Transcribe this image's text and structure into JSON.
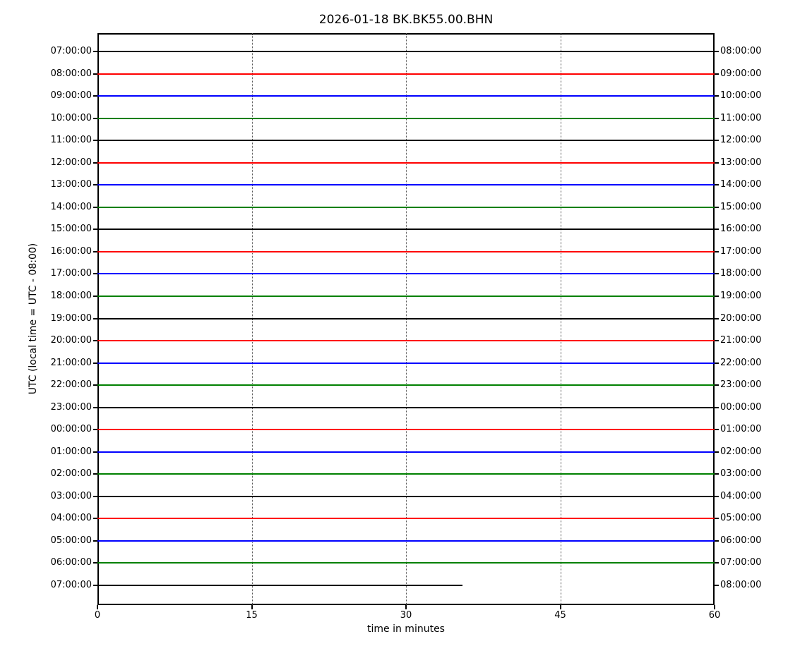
{
  "chart_data": {
    "type": "line",
    "subtype": "helicorder-dayplot",
    "title": "2026-01-18 BK.BK55.00.BHN",
    "xlabel": "time in minutes",
    "ylabel": "UTC (local time = UTC - 08:00)",
    "xlim": [
      0,
      60
    ],
    "x_ticks": [
      0,
      15,
      30,
      45,
      60
    ],
    "grid_minutes": [
      15,
      30,
      45
    ],
    "grid_style": "vertical dotted",
    "legend": "none",
    "line_color_cycle": [
      "#000000",
      "#ff0000",
      "#0000ff",
      "#008000"
    ],
    "trace_appearance": "flat low-amplitude horizontal traces, one per hour",
    "rows": [
      {
        "left_label": "07:00:00",
        "right_label": "08:00:00",
        "color": "#000000",
        "start_minute": 0,
        "end_minute": 60
      },
      {
        "left_label": "08:00:00",
        "right_label": "09:00:00",
        "color": "#ff0000",
        "start_minute": 0,
        "end_minute": 60
      },
      {
        "left_label": "09:00:00",
        "right_label": "10:00:00",
        "color": "#0000ff",
        "start_minute": 0,
        "end_minute": 60
      },
      {
        "left_label": "10:00:00",
        "right_label": "11:00:00",
        "color": "#008000",
        "start_minute": 0,
        "end_minute": 60
      },
      {
        "left_label": "11:00:00",
        "right_label": "12:00:00",
        "color": "#000000",
        "start_minute": 0,
        "end_minute": 60
      },
      {
        "left_label": "12:00:00",
        "right_label": "13:00:00",
        "color": "#ff0000",
        "start_minute": 0,
        "end_minute": 60
      },
      {
        "left_label": "13:00:00",
        "right_label": "14:00:00",
        "color": "#0000ff",
        "start_minute": 0,
        "end_minute": 60
      },
      {
        "left_label": "14:00:00",
        "right_label": "15:00:00",
        "color": "#008000",
        "start_minute": 0,
        "end_minute": 60
      },
      {
        "left_label": "15:00:00",
        "right_label": "16:00:00",
        "color": "#000000",
        "start_minute": 0,
        "end_minute": 60
      },
      {
        "left_label": "16:00:00",
        "right_label": "17:00:00",
        "color": "#ff0000",
        "start_minute": 0,
        "end_minute": 60
      },
      {
        "left_label": "17:00:00",
        "right_label": "18:00:00",
        "color": "#0000ff",
        "start_minute": 0,
        "end_minute": 60
      },
      {
        "left_label": "18:00:00",
        "right_label": "19:00:00",
        "color": "#008000",
        "start_minute": 0,
        "end_minute": 60
      },
      {
        "left_label": "19:00:00",
        "right_label": "20:00:00",
        "color": "#000000",
        "start_minute": 0,
        "end_minute": 60
      },
      {
        "left_label": "20:00:00",
        "right_label": "21:00:00",
        "color": "#ff0000",
        "start_minute": 0,
        "end_minute": 60
      },
      {
        "left_label": "21:00:00",
        "right_label": "22:00:00",
        "color": "#0000ff",
        "start_minute": 0,
        "end_minute": 60
      },
      {
        "left_label": "22:00:00",
        "right_label": "23:00:00",
        "color": "#008000",
        "start_minute": 0,
        "end_minute": 60
      },
      {
        "left_label": "23:00:00",
        "right_label": "00:00:00",
        "color": "#000000",
        "start_minute": 0,
        "end_minute": 60
      },
      {
        "left_label": "00:00:00",
        "right_label": "01:00:00",
        "color": "#ff0000",
        "start_minute": 0,
        "end_minute": 60
      },
      {
        "left_label": "01:00:00",
        "right_label": "02:00:00",
        "color": "#0000ff",
        "start_minute": 0,
        "end_minute": 60
      },
      {
        "left_label": "02:00:00",
        "right_label": "03:00:00",
        "color": "#008000",
        "start_minute": 0,
        "end_minute": 60
      },
      {
        "left_label": "03:00:00",
        "right_label": "04:00:00",
        "color": "#000000",
        "start_minute": 0,
        "end_minute": 60
      },
      {
        "left_label": "04:00:00",
        "right_label": "05:00:00",
        "color": "#ff0000",
        "start_minute": 0,
        "end_minute": 60
      },
      {
        "left_label": "05:00:00",
        "right_label": "06:00:00",
        "color": "#0000ff",
        "start_minute": 0,
        "end_minute": 60
      },
      {
        "left_label": "06:00:00",
        "right_label": "07:00:00",
        "color": "#008000",
        "start_minute": 0,
        "end_minute": 60
      },
      {
        "left_label": "07:00:00",
        "right_label": "08:00:00",
        "color": "#000000",
        "start_minute": 0,
        "end_minute": 35.5
      }
    ]
  }
}
